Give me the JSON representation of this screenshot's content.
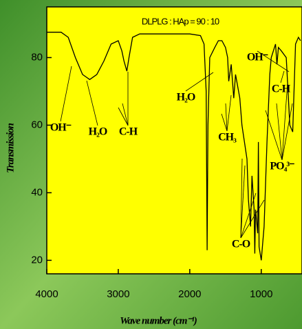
{
  "chart_data": {
    "type": "line",
    "title": "DLPLG : HAp = 90 : 10",
    "x_label": "Wave number (cm⁻¹)",
    "y_label": "Transmission",
    "x": [
      4000,
      3800,
      3700,
      3600,
      3500,
      3400,
      3300,
      3200,
      3100,
      3000,
      2950,
      2920,
      2880,
      2850,
      2800,
      2700,
      2500,
      2000,
      1850,
      1800,
      1770,
      1757,
      1745,
      1720,
      1650,
      1600,
      1550,
      1500,
      1470,
      1455,
      1420,
      1385,
      1360,
      1300,
      1270,
      1200,
      1180,
      1150,
      1130,
      1100,
      1090,
      1080,
      1050,
      1040,
      1030,
      1000,
      960,
      920,
      880,
      860,
      800,
      780,
      760,
      720,
      650,
      600,
      560,
      520,
      480,
      450
    ],
    "values": [
      87.5,
      87.5,
      86,
      80,
      75,
      73.5,
      75,
      79,
      84,
      85,
      82,
      79,
      76,
      80,
      86,
      87,
      87,
      87,
      86.5,
      84,
      70,
      23,
      60,
      80,
      83,
      85,
      85,
      83,
      80,
      73,
      78,
      68,
      75,
      68,
      60,
      50,
      38,
      30,
      45,
      35,
      22,
      35,
      28,
      55,
      24,
      20,
      30,
      55,
      75,
      80,
      84,
      78,
      83,
      82,
      80,
      60,
      58,
      84,
      86,
      85
    ],
    "color": "#000000",
    "xlim": [
      4000,
      430
    ],
    "xticks": [
      4000,
      3000,
      2000,
      1000
    ],
    "ylim": [
      16,
      95
    ],
    "yticks": [
      20,
      40,
      60,
      80
    ],
    "annotations": [
      "OH⁻",
      "H₂O",
      "C-H",
      "H₂O",
      "CH₃",
      "C-O",
      "OH⁻",
      "C-H",
      "PO₄³⁻"
    ]
  }
}
